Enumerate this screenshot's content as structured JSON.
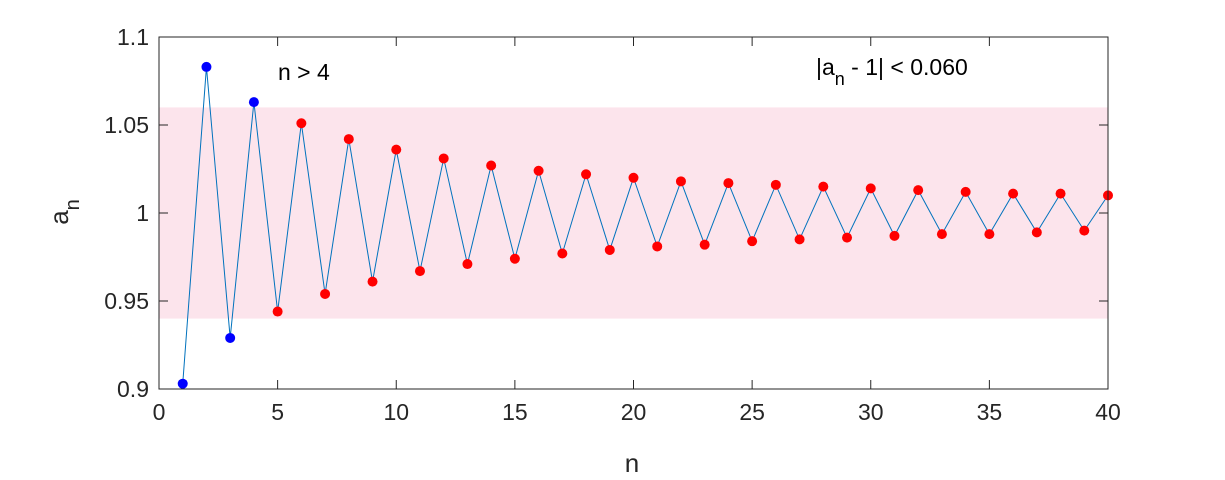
{
  "chart_data": {
    "type": "scatter",
    "xlabel": "n",
    "ylabel": {
      "base": "a",
      "sub": "n"
    },
    "xlim": [
      0,
      40
    ],
    "ylim": [
      0.9,
      1.1
    ],
    "xticks": [
      "0",
      "5",
      "10",
      "15",
      "20",
      "25",
      "30",
      "35",
      "40"
    ],
    "yticks": [
      "0.9",
      "0.95",
      "1",
      "1.05",
      "1.1"
    ],
    "grid": false,
    "band": {
      "lower": 0.94,
      "upper": 1.06,
      "color": "#fce4ec"
    },
    "series": [
      {
        "type": "line",
        "color": "#0072BD",
        "x": [
          1,
          2,
          3,
          4,
          5,
          6,
          7,
          8,
          9,
          10,
          11,
          12,
          13,
          14,
          15,
          16,
          17,
          18,
          19,
          20,
          21,
          22,
          23,
          24,
          25,
          26,
          27,
          28,
          29,
          30,
          31,
          32,
          33,
          34,
          35,
          36,
          37,
          38,
          39,
          40
        ],
        "y": [
          0.903,
          1.083,
          0.929,
          1.063,
          0.944,
          1.051,
          0.954,
          1.042,
          0.961,
          1.036,
          0.967,
          1.031,
          0.971,
          1.027,
          0.974,
          1.024,
          0.977,
          1.022,
          0.979,
          1.02,
          0.981,
          1.018,
          0.982,
          1.017,
          0.984,
          1.016,
          0.985,
          1.015,
          0.986,
          1.014,
          0.987,
          1.013,
          0.988,
          1.012,
          0.988,
          1.011,
          0.989,
          1.011,
          0.99,
          1.01
        ]
      },
      {
        "type": "scatter",
        "color": "#0000ff",
        "x": [
          1,
          2,
          3,
          4
        ],
        "y": [
          0.903,
          1.083,
          0.929,
          1.063
        ]
      },
      {
        "type": "scatter",
        "color": "#ff0000",
        "x": [
          5,
          6,
          7,
          8,
          9,
          10,
          11,
          12,
          13,
          14,
          15,
          16,
          17,
          18,
          19,
          20,
          21,
          22,
          23,
          24,
          25,
          26,
          27,
          28,
          29,
          30,
          31,
          32,
          33,
          34,
          35,
          36,
          37,
          38,
          39,
          40
        ],
        "y": [
          0.944,
          1.051,
          0.954,
          1.042,
          0.961,
          1.036,
          0.967,
          1.031,
          0.971,
          1.027,
          0.974,
          1.024,
          0.977,
          1.022,
          0.979,
          1.02,
          0.981,
          1.018,
          0.982,
          1.017,
          0.984,
          1.016,
          0.985,
          1.015,
          0.986,
          1.014,
          0.987,
          1.013,
          0.988,
          1.012,
          0.988,
          1.011,
          0.989,
          1.011,
          0.99,
          1.01
        ]
      }
    ],
    "annotations": {
      "n_condition": "n > 4",
      "bound_prefix": "|a",
      "bound_sub": "n",
      "bound_suffix": " - 1| < 0.060"
    }
  }
}
